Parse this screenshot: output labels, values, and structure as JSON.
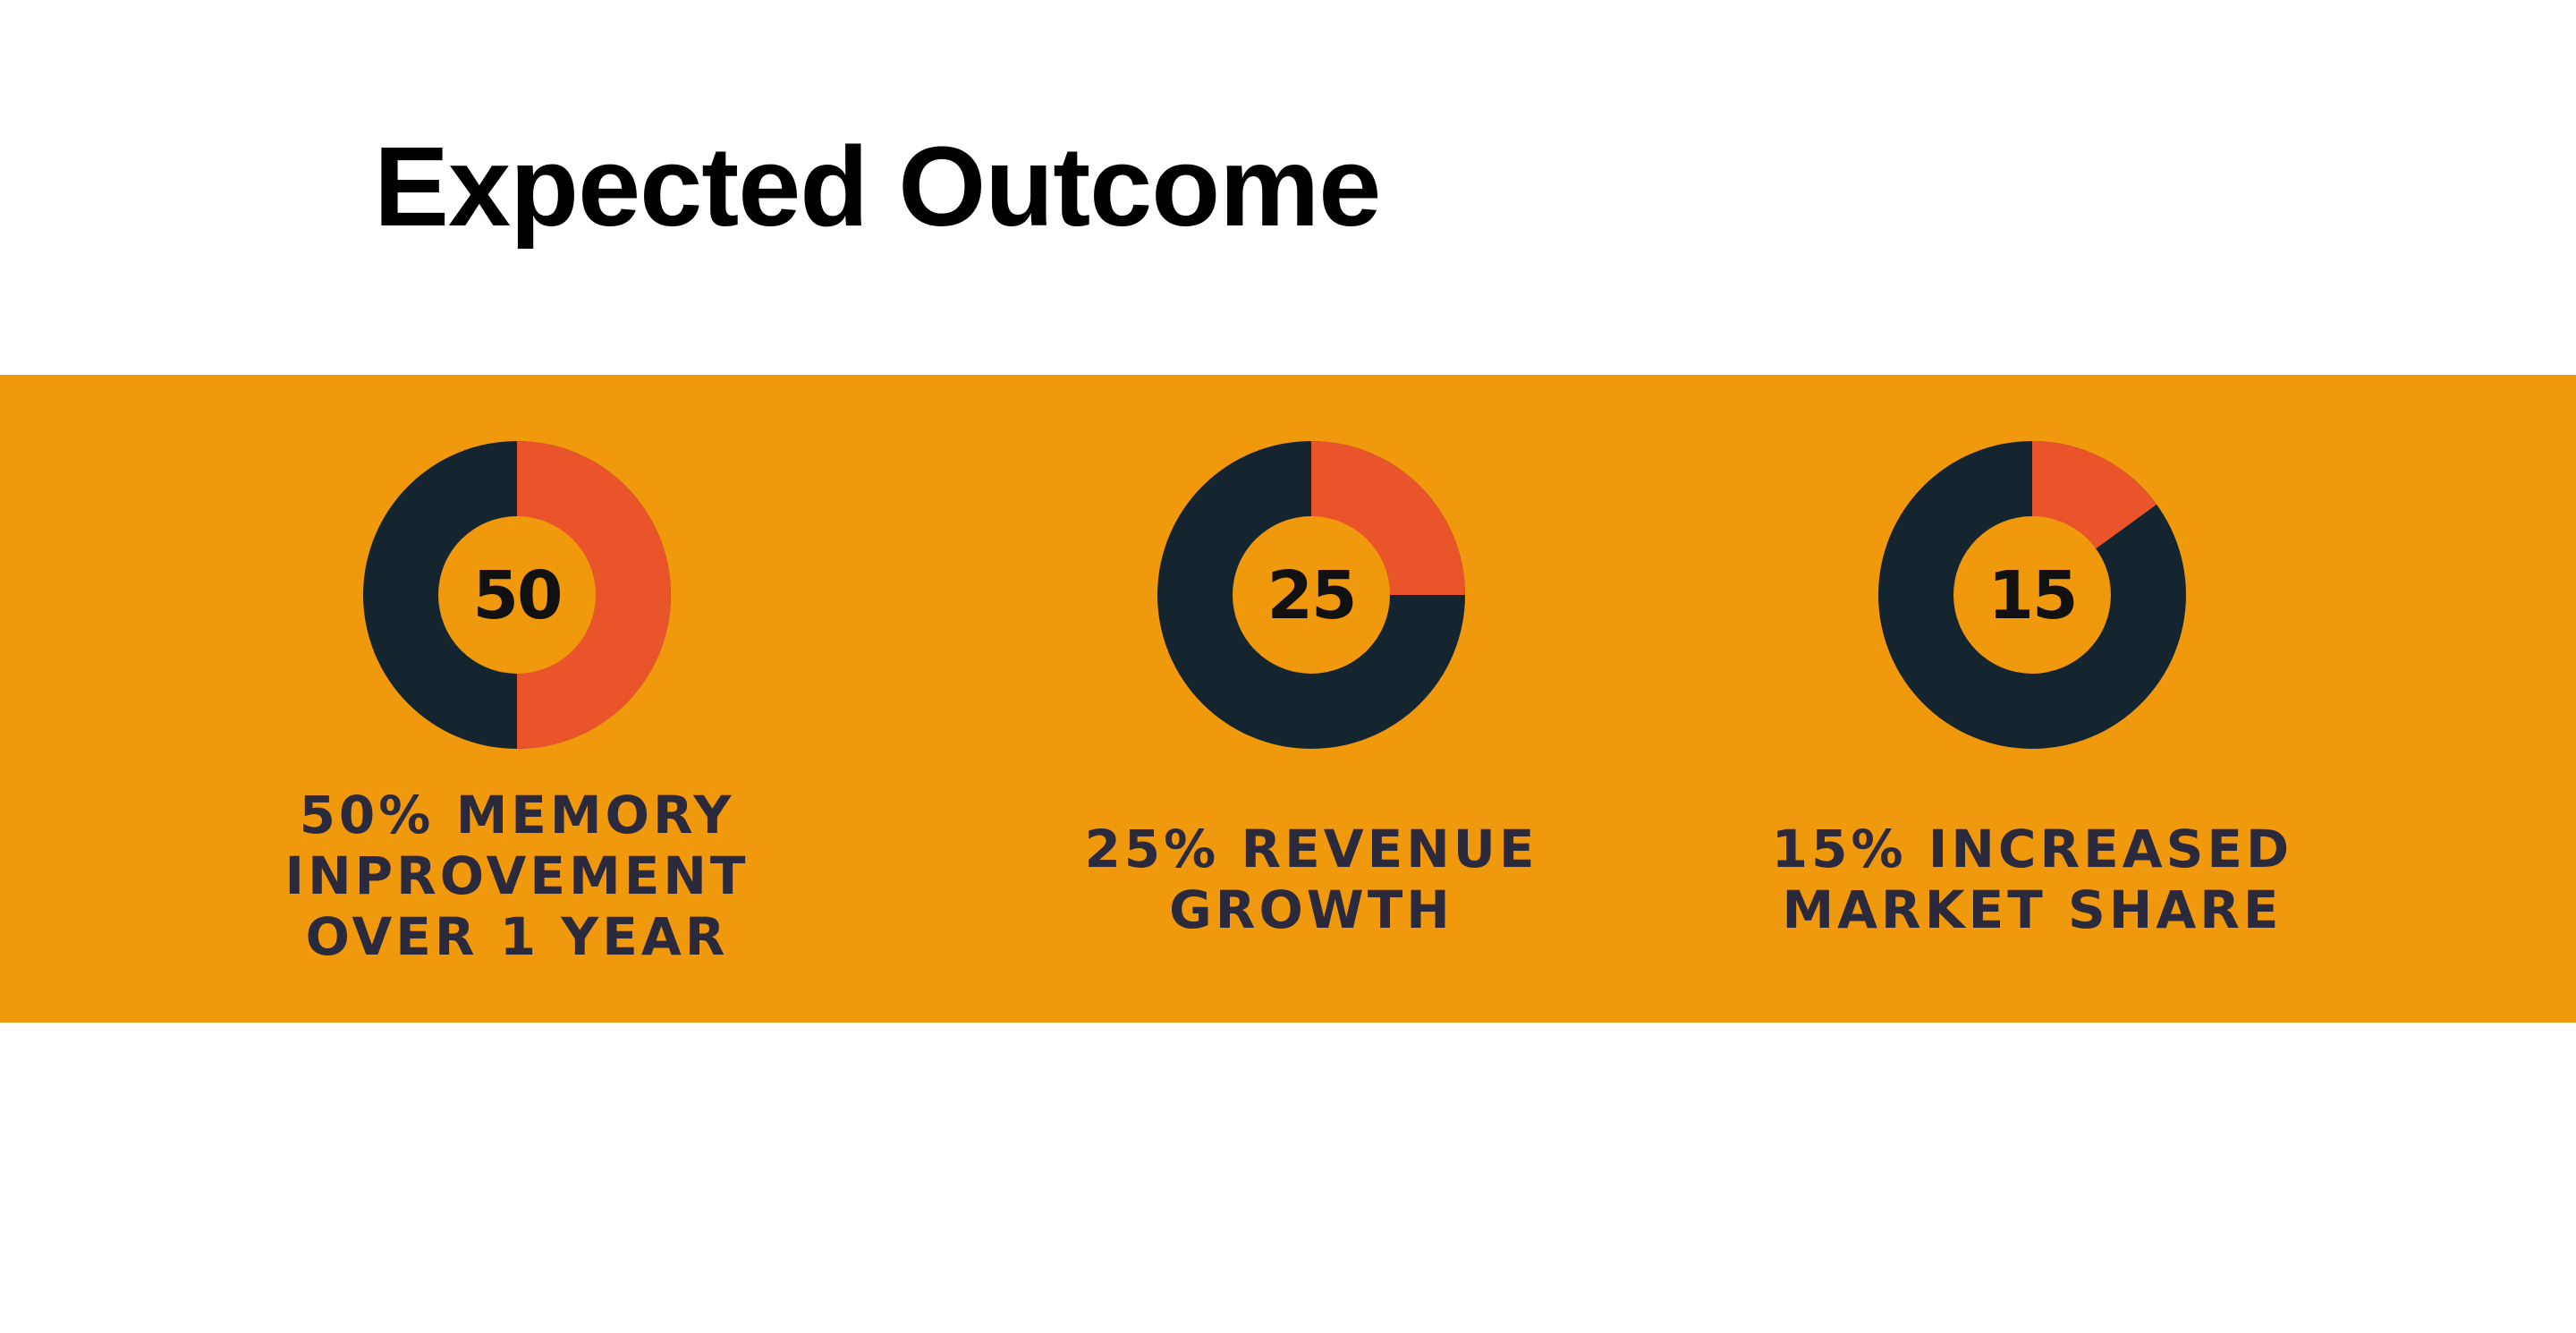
{
  "title": "Expected Outcome",
  "colors": {
    "band": "#f1990d",
    "ring_base": "#142530",
    "ring_highlight": "#e9542a",
    "ring_hole": "#f1990d",
    "caption_text": "#2a2a3c",
    "value_text": "#111111"
  },
  "chart_data": [
    {
      "type": "pie",
      "value": 50,
      "total": 100,
      "center_label": "50",
      "caption": "50% MEMORY\nINPROVEMENT\nOVER 1 YEAR"
    },
    {
      "type": "pie",
      "value": 25,
      "total": 100,
      "center_label": "25",
      "caption": "25% REVENUE\nGROWTH"
    },
    {
      "type": "pie",
      "value": 15,
      "total": 100,
      "center_label": "15",
      "caption": "15% INCREASED\nMARKET SHARE"
    }
  ]
}
